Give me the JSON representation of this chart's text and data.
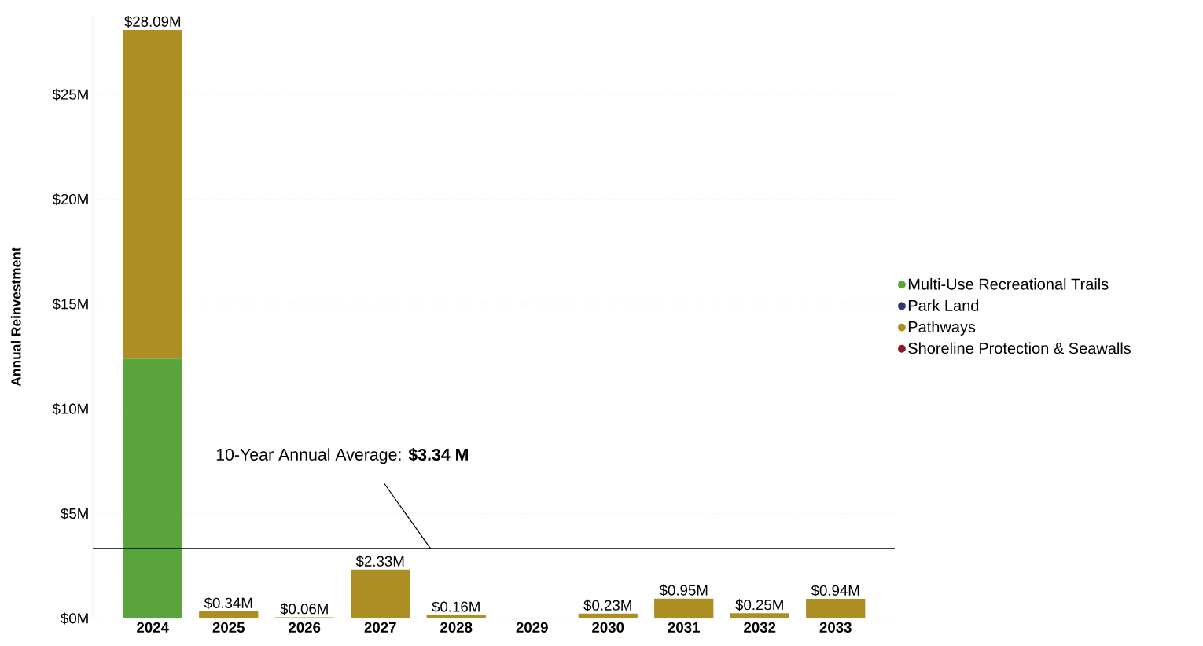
{
  "chart_data": {
    "type": "bar",
    "stacked": true,
    "ylabel": "Annual Reinvestment",
    "categories": [
      "2024",
      "2025",
      "2026",
      "2027",
      "2028",
      "2029",
      "2030",
      "2031",
      "2032",
      "2033"
    ],
    "series": [
      {
        "name": "Multi-Use Recreational Trails",
        "color": "#5aa43c",
        "values": [
          12.4,
          null,
          null,
          null,
          null,
          null,
          null,
          null,
          null,
          null
        ]
      },
      {
        "name": "Park Land",
        "color": "#2e3a78",
        "values": [
          null,
          null,
          null,
          null,
          null,
          null,
          null,
          null,
          null,
          null
        ]
      },
      {
        "name": "Pathways",
        "color": "#ad8e22",
        "values": [
          15.69,
          0.34,
          0.06,
          2.33,
          0.16,
          null,
          0.23,
          0.95,
          0.25,
          0.94
        ]
      },
      {
        "name": "Shoreline Protection & Seawalls",
        "color": "#8b1a2b",
        "values": [
          null,
          null,
          null,
          null,
          null,
          null,
          null,
          null,
          null,
          null
        ]
      }
    ],
    "totals": [
      "$28.09M",
      "$0.34M",
      "$0.06M",
      "$2.33M",
      "$0.16M",
      null,
      "$0.23M",
      "$0.95M",
      "$0.25M",
      "$0.94M"
    ],
    "ylim": [
      0,
      28.8
    ],
    "yticks": [
      {
        "value": 0,
        "label": "$0M"
      },
      {
        "value": 5,
        "label": "$5M"
      },
      {
        "value": 10,
        "label": "$10M"
      },
      {
        "value": 15,
        "label": "$15M"
      },
      {
        "value": 20,
        "label": "$20M"
      },
      {
        "value": 25,
        "label": "$25M"
      }
    ],
    "ref_lines": [
      {
        "axis": "y",
        "value": 3.34,
        "label": "10-Year Annual Average: **$3.34 M**",
        "color": "#000000"
      }
    ],
    "grid": "y",
    "legend": "right"
  }
}
